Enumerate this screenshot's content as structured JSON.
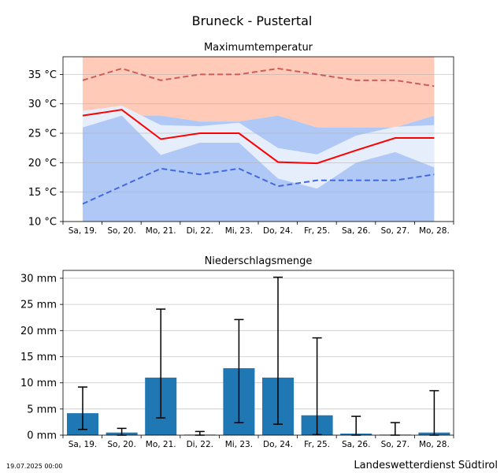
{
  "title": "Bruneck - Pustertal",
  "footer_left": "19.07.2025 00:00",
  "footer_right": "Landeswetterdienst Südtirol",
  "chart_data": [
    {
      "type": "line",
      "title": "Maximumtemperatur",
      "categories": [
        "Sa, 19.",
        "So, 20.",
        "Mo, 21.",
        "Di, 22.",
        "Mi, 23.",
        "Do, 24.",
        "Fr, 25.",
        "Sa, 26.",
        "So, 27.",
        "Mo, 28."
      ],
      "ylim": [
        10,
        38
      ],
      "yticks": [
        10,
        15,
        20,
        25,
        30,
        35
      ],
      "ytick_labels": [
        "10 °C",
        "15 °C",
        "20 °C",
        "25 °C",
        "30 °C",
        "35 °C"
      ],
      "grid": true,
      "bands": [
        {
          "lower": [
            26,
            28,
            28,
            27,
            27,
            28,
            26,
            26,
            26,
            28
          ],
          "upper": [
            38,
            38,
            38,
            38,
            38,
            38,
            38,
            38,
            38,
            38
          ],
          "color": "#ffcbb8"
        },
        {
          "lower": [
            10,
            10,
            10,
            10,
            10,
            10,
            10,
            10,
            10,
            10
          ],
          "upper": [
            26,
            28,
            28,
            27,
            27,
            28,
            26,
            26,
            26,
            28
          ],
          "color": "#b0c8f5"
        },
        {
          "lower": [
            26,
            28,
            21.3,
            23.4,
            23.4,
            17.3,
            15.6,
            20,
            21.8,
            19.2
          ],
          "upper": [
            28.8,
            29.7,
            26.4,
            26.2,
            26.8,
            22.5,
            21.4,
            24.6,
            26.1,
            26.4
          ],
          "color": "#e6eefc"
        }
      ],
      "series": [
        {
          "values": [
            28,
            29,
            24,
            25,
            25,
            20.1,
            19.9,
            22.1,
            24.2,
            24.2
          ],
          "color": "#ff0000",
          "style": "solid"
        },
        {
          "values": [
            34,
            36,
            34,
            35,
            35,
            36,
            35,
            34,
            34,
            33
          ],
          "color": "#cd5c5c",
          "style": "dashed"
        },
        {
          "values": [
            13,
            16,
            19,
            18,
            19,
            16,
            17,
            17,
            17,
            18
          ],
          "color": "#4169e1",
          "style": "dashed"
        }
      ]
    },
    {
      "type": "bar",
      "title": "Niederschlagsmenge",
      "categories": [
        "Sa, 19.",
        "So, 20.",
        "Mo, 21.",
        "Di, 22.",
        "Mi, 23.",
        "Do, 24.",
        "Fr, 25.",
        "Sa, 26.",
        "So, 27.",
        "Mo, 28."
      ],
      "values": [
        4.2,
        0.5,
        11,
        0.1,
        12.8,
        11,
        3.8,
        0.3,
        0.1,
        0.5
      ],
      "error_low": [
        1.1,
        0,
        3.3,
        0,
        2.4,
        2.1,
        0.1,
        0,
        0,
        0
      ],
      "error_high": [
        9.2,
        1.3,
        24.1,
        0.7,
        22.1,
        30.2,
        18.6,
        3.6,
        2.4,
        8.5
      ],
      "ylim": [
        0,
        31.5
      ],
      "yticks": [
        0,
        5,
        10,
        15,
        20,
        25,
        30
      ],
      "ytick_labels": [
        "0 mm",
        "5 mm",
        "10 mm",
        "15 mm",
        "20 mm",
        "25 mm",
        "30 mm"
      ],
      "grid": true,
      "color": "#1f77b4"
    }
  ]
}
